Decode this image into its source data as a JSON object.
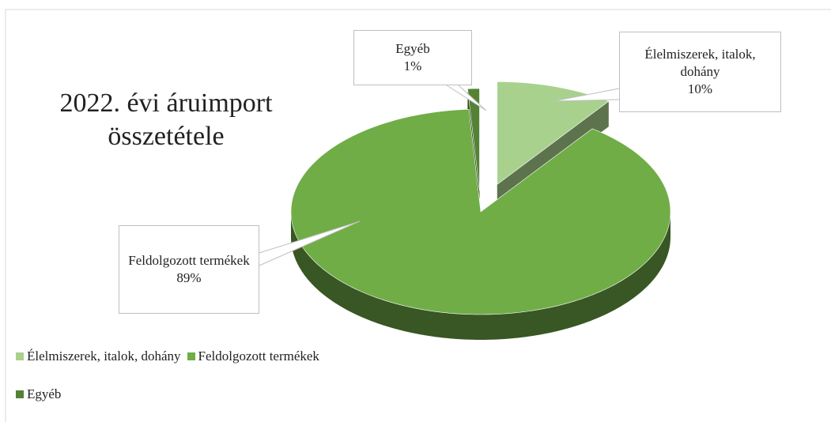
{
  "chart_data": {
    "type": "pie",
    "title": "2022. évi áruimport összetétele",
    "categories": [
      "Élelmiszerek, italok, dohány",
      "Feldolgozott termékek",
      "Egyéb"
    ],
    "values": [
      10,
      89,
      1
    ],
    "value_labels": [
      "10%",
      "89%",
      "1%"
    ],
    "colors": [
      "#a9d18e",
      "#70ad47",
      "#548235"
    ],
    "legend": "bottom"
  }
}
